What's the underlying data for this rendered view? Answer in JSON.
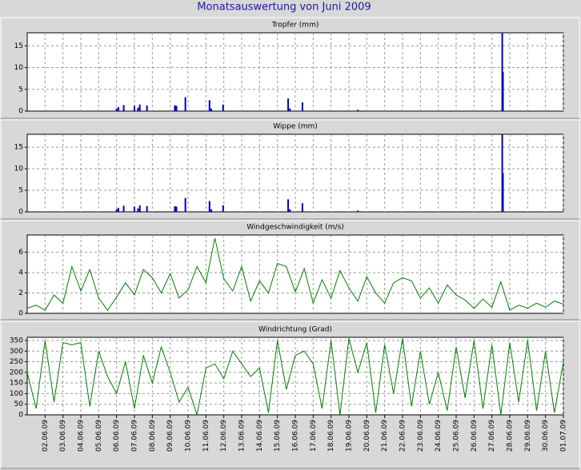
{
  "title": "Monatsauswertung von Juni 2009",
  "chart_data": [
    {
      "type": "bar",
      "title": "Tropfer (mm)",
      "color": "#0000c0",
      "grid": true,
      "x": [
        5.0,
        5.1,
        5.4,
        6.0,
        6.2,
        6.3,
        6.7,
        8.26,
        8.35,
        8.85,
        10.2,
        10.3,
        10.96,
        14.6,
        14.7,
        15.4,
        18.5,
        26.58,
        26.62
      ],
      "values": [
        0.6,
        0.9,
        1.4,
        1.2,
        0.8,
        1.5,
        1.3,
        1.3,
        1.2,
        3.2,
        2.5,
        0.6,
        1.5,
        2.9,
        0.6,
        2.0,
        0.3,
        18,
        9
      ],
      "xlim": [
        0,
        30
      ],
      "ylim": [
        0,
        18
      ],
      "yticks": [
        0,
        5,
        10,
        15
      ]
    },
    {
      "type": "bar",
      "title": "Wippe (mm)",
      "color": "#0000c0",
      "grid": true,
      "x": [
        5.0,
        5.1,
        5.4,
        6.0,
        6.2,
        6.3,
        6.7,
        8.26,
        8.35,
        8.85,
        10.2,
        10.3,
        10.96,
        14.6,
        14.7,
        15.4,
        18.5,
        26.58,
        26.62
      ],
      "values": [
        0.6,
        0.9,
        1.4,
        1.2,
        0.8,
        1.5,
        1.3,
        1.3,
        1.2,
        3.2,
        2.5,
        0.6,
        1.5,
        2.9,
        0.6,
        2.0,
        0.3,
        18,
        9
      ],
      "xlim": [
        0,
        30
      ],
      "ylim": [
        0,
        18
      ],
      "yticks": [
        0,
        5,
        10,
        15
      ]
    },
    {
      "type": "line",
      "title": "Windgeschwindigkeit (m/s)",
      "color": "#008000",
      "grid": true,
      "x": [
        0,
        0.5,
        1,
        1.5,
        2,
        2.5,
        3,
        3.5,
        4,
        4.5,
        5,
        5.5,
        6,
        6.5,
        7,
        7.5,
        8,
        8.5,
        9,
        9.5,
        10,
        10.5,
        11,
        11.5,
        12,
        12.5,
        13,
        13.5,
        14,
        14.5,
        15,
        15.5,
        16,
        16.5,
        17,
        17.5,
        18,
        18.5,
        19,
        19.5,
        20,
        20.5,
        21,
        21.5,
        22,
        22.5,
        23,
        23.5,
        24,
        24.5,
        25,
        25.5,
        26,
        26.5,
        27,
        27.5,
        28,
        28.5,
        29,
        29.5,
        30
      ],
      "values": [
        0.5,
        0.8,
        0.3,
        1.8,
        1.0,
        4.6,
        2.2,
        4.3,
        1.5,
        0.3,
        1.6,
        3.0,
        1.8,
        4.3,
        3.5,
        2.0,
        3.9,
        1.5,
        2.3,
        4.6,
        3.0,
        7.4,
        3.4,
        2.2,
        4.6,
        1.2,
        3.2,
        2.0,
        4.9,
        4.6,
        2.1,
        4.4,
        1.0,
        3.3,
        1.5,
        4.2,
        2.5,
        1.2,
        3.6,
        2.0,
        1.0,
        3.0,
        3.5,
        3.2,
        1.5,
        2.5,
        1.0,
        2.8,
        1.8,
        1.3,
        0.5,
        1.4,
        0.6,
        3.1,
        0.3,
        0.8,
        0.5,
        1.0,
        0.6,
        1.2,
        0.9
      ],
      "xlim": [
        0,
        30
      ],
      "ylim": [
        0,
        7.7
      ],
      "yticks": [
        0,
        2,
        4,
        6
      ]
    },
    {
      "type": "line",
      "title": "Windrichtung (Grad)",
      "color": "#008000",
      "grid": true,
      "x": [
        0,
        0.5,
        1,
        1.5,
        2,
        2.5,
        3,
        3.5,
        4,
        4.5,
        5,
        5.5,
        6,
        6.5,
        7,
        7.5,
        8,
        8.5,
        9,
        9.5,
        10,
        10.5,
        11,
        11.5,
        12,
        12.5,
        13,
        13.5,
        14,
        14.5,
        15,
        15.5,
        16,
        16.5,
        17,
        17.5,
        18,
        18.5,
        19,
        19.5,
        20,
        20.5,
        21,
        21.5,
        22,
        22.5,
        23,
        23.5,
        24,
        24.5,
        25,
        25.5,
        26,
        26.5,
        27,
        27.5,
        28,
        28.5,
        29,
        29.5,
        30
      ],
      "values": [
        200,
        30,
        350,
        60,
        340,
        330,
        340,
        40,
        300,
        180,
        100,
        250,
        30,
        280,
        150,
        320,
        200,
        60,
        130,
        0,
        220,
        240,
        170,
        300,
        240,
        180,
        220,
        10,
        350,
        120,
        280,
        300,
        240,
        30,
        350,
        0,
        360,
        200,
        340,
        10,
        330,
        100,
        360,
        40,
        300,
        50,
        200,
        20,
        320,
        80,
        350,
        30,
        330,
        0,
        340,
        60,
        350,
        20,
        300,
        10,
        250
      ],
      "xlim": [
        0,
        30
      ],
      "ylim": [
        0,
        365
      ],
      "yticks": [
        0,
        50,
        100,
        150,
        200,
        250,
        300,
        350
      ],
      "xticks": [
        {
          "value": 1,
          "label": "02.06.09"
        },
        {
          "value": 2,
          "label": "03.06.09"
        },
        {
          "value": 3,
          "label": "04.06.09"
        },
        {
          "value": 4,
          "label": "05.06.09"
        },
        {
          "value": 5,
          "label": "06.06.09"
        },
        {
          "value": 6,
          "label": "07.06.09"
        },
        {
          "value": 7,
          "label": "08.06.09"
        },
        {
          "value": 8,
          "label": "09.06.09"
        },
        {
          "value": 9,
          "label": "10.06.09"
        },
        {
          "value": 10,
          "label": "11.06.09"
        },
        {
          "value": 11,
          "label": "12.06.09"
        },
        {
          "value": 12,
          "label": "13.06.09"
        },
        {
          "value": 13,
          "label": "14.06.09"
        },
        {
          "value": 14,
          "label": "15.06.09"
        },
        {
          "value": 15,
          "label": "16.06.09"
        },
        {
          "value": 16,
          "label": "17.06.09"
        },
        {
          "value": 17,
          "label": "18.06.09"
        },
        {
          "value": 18,
          "label": "19.06.09"
        },
        {
          "value": 19,
          "label": "20.06.09"
        },
        {
          "value": 20,
          "label": "21.06.09"
        },
        {
          "value": 21,
          "label": "22.06.09"
        },
        {
          "value": 22,
          "label": "23.06.09"
        },
        {
          "value": 23,
          "label": "24.06.09"
        },
        {
          "value": 24,
          "label": "25.06.09"
        },
        {
          "value": 25,
          "label": "26.06.09"
        },
        {
          "value": 26,
          "label": "27.06.09"
        },
        {
          "value": 27,
          "label": "28.06.09"
        },
        {
          "value": 28,
          "label": "29.06.09"
        },
        {
          "value": 29,
          "label": "30.06.09"
        },
        {
          "value": 30,
          "label": "01.07.09"
        }
      ]
    }
  ]
}
